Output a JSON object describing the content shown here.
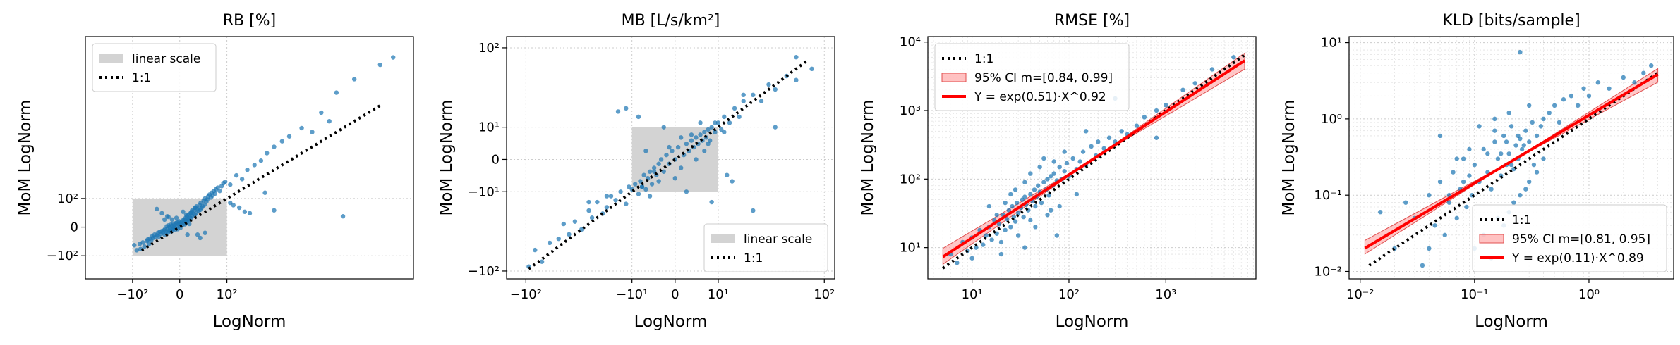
{
  "chart_data": [
    {
      "type": "scatter",
      "title": "RB [%]",
      "xlabel": "LogNorm",
      "ylabel": "MoM LogNorm",
      "scale": "symlog",
      "linthresh": 100,
      "xlim": [
        -300,
        3000
      ],
      "ylim": [
        -250,
        10000
      ],
      "xticks": [
        -100,
        0,
        100
      ],
      "xtick_labels": [
        "−10²",
        "0",
        "10²"
      ],
      "yticks": [
        -100,
        0,
        100
      ],
      "ytick_labels": [
        "−10²",
        "0",
        "10²"
      ],
      "grid": true,
      "shaded_region": {
        "label": "linear scale",
        "x": [
          -100,
          100
        ],
        "y": [
          -100,
          100
        ],
        "color": "#d3d3d3"
      },
      "reference_line": {
        "label": "1:1",
        "x": [
          -75,
          1800
        ],
        "color": "#000000"
      },
      "legend": {
        "position": "top-left",
        "entries": [
          "linear scale",
          "1:1"
        ]
      },
      "points": {
        "color": "#1f77b4",
        "x": [
          -95,
          -88,
          -80,
          -78,
          -72,
          -68,
          -62,
          -60,
          -57,
          -55,
          -52,
          -50,
          -48,
          -45,
          -43,
          -40,
          -38,
          -36,
          -34,
          -32,
          -30,
          -28,
          -26,
          -25,
          -24,
          -22,
          -21,
          -20,
          -19,
          -18,
          -17,
          -16,
          -15,
          -14,
          -13,
          -12,
          -11,
          -10,
          -9,
          -8,
          -7,
          -6,
          -5,
          -4,
          -3,
          -2,
          -1,
          0,
          1,
          2,
          3,
          4,
          5,
          6,
          7,
          8,
          9,
          10,
          11,
          12,
          13,
          14,
          15,
          16,
          17,
          18,
          19,
          20,
          22,
          24,
          25,
          26,
          28,
          30,
          32,
          34,
          35,
          36,
          38,
          40,
          42,
          44,
          45,
          48,
          50,
          52,
          55,
          58,
          60,
          62,
          65,
          68,
          70,
          75,
          80,
          85,
          90,
          95,
          110,
          130,
          150,
          170,
          200,
          230,
          260,
          300,
          350,
          400,
          500,
          700,
          900,
          1200,
          1800,
          2200,
          800,
          300,
          180,
          160,
          140,
          120,
          110,
          600,
          250,
          1000,
          -30,
          -20,
          -10,
          0,
          10,
          20,
          30,
          -40,
          -25,
          -15,
          -5,
          5,
          15,
          25,
          35,
          45,
          -18,
          -8,
          8,
          18,
          28,
          -12,
          12
        ],
        "y": [
          -55,
          -75,
          -50,
          -70,
          -45,
          -60,
          -40,
          -35,
          -50,
          -32,
          -38,
          -25,
          -30,
          -20,
          -28,
          -22,
          -15,
          -26,
          -12,
          -18,
          -10,
          -14,
          -8,
          -20,
          -5,
          -12,
          2,
          -6,
          -15,
          4,
          -9,
          1,
          -3,
          6,
          -11,
          3,
          -4,
          8,
          -2,
          5,
          -7,
          10,
          0,
          12,
          -5,
          7,
          15,
          3,
          -2,
          9,
          14,
          5,
          18,
          11,
          20,
          7,
          25,
          13,
          30,
          16,
          22,
          35,
          18,
          28,
          40,
          24,
          45,
          30,
          38,
          50,
          35,
          60,
          42,
          55,
          48,
          70,
          52,
          80,
          60,
          65,
          90,
          72,
          100,
          85,
          95,
          110,
          120,
          105,
          130,
          115,
          140,
          125,
          150,
          160,
          140,
          170,
          190,
          200,
          180,
          250,
          220,
          300,
          350,
          400,
          500,
          600,
          700,
          800,
          1000,
          1500,
          2500,
          3500,
          5000,
          6000,
          1200,
          50,
          40,
          45,
          60,
          70,
          80,
          900,
          130,
          30,
          40,
          30,
          -5,
          10,
          35,
          50,
          -20,
          55,
          20,
          -10,
          25,
          45,
          8,
          60,
          -30,
          -15,
          28,
          0,
          18,
          40,
          65,
          20,
          -20
        ]
      }
    },
    {
      "type": "scatter",
      "title": "MB [L/s/km²]",
      "xlabel": "LogNorm",
      "ylabel": "MoM LogNorm",
      "scale": "symlog",
      "linthresh": 10,
      "xlim": [
        -140,
        120
      ],
      "ylim": [
        -120,
        130
      ],
      "xticks": [
        -100,
        -10,
        0,
        10,
        100
      ],
      "xtick_labels": [
        "−10²",
        "−10¹",
        "0",
        "10¹",
        "10²"
      ],
      "yticks": [
        -100,
        -10,
        0,
        10,
        100
      ],
      "ytick_labels": [
        "−10²",
        "−10¹",
        "0",
        "10¹",
        "10²"
      ],
      "grid": true,
      "shaded_region": {
        "label": "linear scale",
        "x": [
          -10,
          10
        ],
        "y": [
          -10,
          10
        ],
        "color": "#d3d3d3"
      },
      "reference_line": {
        "label": "1:1",
        "x": [
          -95,
          75
        ],
        "color": "#000000"
      },
      "legend": {
        "position": "bottom-right",
        "entries": [
          "linear scale",
          "1:1"
        ]
      },
      "points": {
        "color": "#1f77b4",
        "x": [
          -95,
          -85,
          -75,
          -65,
          -55,
          -50,
          -45,
          -40,
          -35,
          -30,
          -28,
          -25,
          -22,
          -20,
          -18,
          -16,
          -14,
          -12,
          -11,
          -10,
          -9,
          -8,
          -7.5,
          -7,
          -6.5,
          -6,
          -5.5,
          -5,
          -4.5,
          -4,
          -3.5,
          -3,
          -2.5,
          -2,
          -1.5,
          -1,
          -0.5,
          0,
          0.5,
          1,
          1.5,
          2,
          2.5,
          3,
          3.5,
          4,
          4.5,
          5,
          5.5,
          6,
          6.5,
          7,
          7.5,
          8,
          9,
          10,
          11,
          12,
          14,
          16,
          18,
          20,
          25,
          30,
          35,
          40,
          50,
          60,
          80,
          -12,
          -8,
          -5,
          -2,
          0,
          2,
          5,
          8,
          12,
          20,
          -6,
          -3,
          1,
          4,
          7,
          15,
          25,
          40,
          60,
          -30,
          -20,
          -15,
          -4,
          3,
          6,
          9,
          13,
          -1,
          -7
        ],
        "y": [
          -90,
          -60,
          -80,
          -50,
          -45,
          -30,
          -40,
          -28,
          -35,
          -20,
          -25,
          -15,
          -22,
          -18,
          -12,
          -14,
          -10,
          -16,
          -8,
          -9,
          -7,
          -11,
          -6,
          -8,
          -4,
          -9,
          -5,
          -3,
          -7,
          -2,
          -4,
          -6,
          0,
          -3,
          1,
          -1,
          2,
          0,
          3,
          -2,
          1,
          4,
          2,
          5,
          3,
          6,
          4,
          7,
          5,
          8,
          6,
          9,
          5,
          10,
          8,
          12,
          9,
          15,
          12,
          20,
          15,
          25,
          30,
          25,
          40,
          35,
          50,
          45,
          60,
          20,
          15,
          -12,
          10,
          -5,
          -10,
          12,
          -15,
          8,
          30,
          2,
          -1,
          6,
          0,
          4,
          -6,
          -20,
          10,
          80,
          -15,
          -12,
          18,
          -3,
          7,
          2,
          12,
          -4,
          3,
          -8
        ]
      }
    },
    {
      "type": "scatter",
      "title": "RMSE [%]",
      "xlabel": "LogNorm",
      "ylabel": "MoM LogNorm",
      "scale": "log",
      "xlim": [
        3.5,
        8500
      ],
      "ylim": [
        3.5,
        12000
      ],
      "xticks": [
        10,
        100,
        1000
      ],
      "xtick_labels": [
        "10¹",
        "10²",
        "10³"
      ],
      "yticks": [
        10,
        100,
        1000,
        10000
      ],
      "ytick_labels": [
        "10¹",
        "10²",
        "10³",
        "10⁴"
      ],
      "grid": true,
      "reference_line": {
        "label": "1:1",
        "x": [
          5,
          6500
        ],
        "color": "#000000"
      },
      "fit_line": {
        "label": "Y = exp(0.51)·X^0.92",
        "intercept_log": 0.51,
        "slope": 0.92,
        "x": [
          5,
          6500
        ],
        "color": "#ff0000"
      },
      "ci_band": {
        "label": "95% CI m=[0.84, 0.99]",
        "slope_low": 0.84,
        "slope_high": 0.99,
        "color": "#ff9999"
      },
      "legend": {
        "position": "top-left",
        "entries": [
          "1:1",
          "95% CI m=[0.84, 0.99]",
          "Y = exp(0.51)·X^0.92"
        ]
      },
      "points": {
        "color": "#1f77b4",
        "x": [
          6,
          7,
          8,
          9,
          10,
          10,
          11,
          12,
          13,
          14,
          15,
          16,
          17,
          18,
          19,
          20,
          21,
          22,
          23,
          24,
          25,
          26,
          27,
          28,
          29,
          30,
          32,
          33,
          34,
          35,
          36,
          38,
          40,
          42,
          44,
          45,
          46,
          48,
          50,
          52,
          55,
          58,
          60,
          62,
          65,
          68,
          70,
          75,
          80,
          85,
          90,
          95,
          100,
          110,
          120,
          130,
          140,
          150,
          170,
          190,
          200,
          230,
          260,
          300,
          350,
          400,
          500,
          600,
          800,
          1000,
          1500,
          2000,
          3000,
          5000,
          25,
          30,
          35,
          40,
          50,
          60,
          70,
          80,
          40,
          45,
          55,
          65,
          35,
          28,
          22,
          18,
          120,
          150,
          90,
          75,
          300,
          800,
          20,
          15
        ],
        "y": [
          8,
          6,
          12,
          9,
          14,
          7,
          10,
          18,
          11,
          15,
          20,
          13,
          25,
          16,
          22,
          12,
          30,
          18,
          26,
          35,
          20,
          40,
          28,
          24,
          45,
          32,
          38,
          50,
          28,
          55,
          42,
          35,
          60,
          48,
          70,
          40,
          55,
          80,
          65,
          45,
          90,
          70,
          100,
          58,
          110,
          80,
          120,
          95,
          150,
          100,
          130,
          170,
          110,
          200,
          140,
          180,
          250,
          160,
          300,
          220,
          350,
          280,
          400,
          350,
          500,
          450,
          600,
          800,
          1000,
          1200,
          2000,
          2500,
          4000,
          6000,
          60,
          15,
          90,
          25,
          150,
          30,
          180,
          40,
          120,
          20,
          200,
          35,
          10,
          70,
          45,
          30,
          60,
          500,
          250,
          15,
          1500,
          400,
          8,
          40
        ]
      }
    },
    {
      "type": "scatter",
      "title": "KLD [bits/sample]",
      "xlabel": "LogNorm",
      "ylabel": "MoM LogNorm",
      "scale": "log",
      "xlim": [
        0.008,
        5.5
      ],
      "ylim": [
        0.008,
        12
      ],
      "xticks": [
        0.01,
        0.1,
        1
      ],
      "xtick_labels": [
        "10⁻²",
        "10⁻¹",
        "10⁰"
      ],
      "yticks": [
        0.01,
        0.1,
        1,
        10
      ],
      "ytick_labels": [
        "10⁻²",
        "10⁻¹",
        "10⁰",
        "10¹"
      ],
      "grid": true,
      "reference_line": {
        "label": "1:1",
        "x": [
          0.012,
          4
        ],
        "color": "#000000"
      },
      "fit_line": {
        "label": "Y = exp(0.11)·X^0.89",
        "intercept_log": 0.11,
        "slope": 0.89,
        "x": [
          0.011,
          4
        ],
        "color": "#ff0000"
      },
      "ci_band": {
        "label": "95% CI m=[0.81, 0.95]",
        "slope_low": 0.81,
        "slope_high": 0.95,
        "color": "#ff9999"
      },
      "legend": {
        "position": "bottom-right",
        "entries": [
          "1:1",
          "95% CI m=[0.81, 0.95]",
          "Y = exp(0.11)·X^0.89"
        ]
      },
      "points": {
        "color": "#1f77b4",
        "x": [
          0.015,
          0.02,
          0.025,
          0.03,
          0.035,
          0.04,
          0.045,
          0.05,
          0.055,
          0.06,
          0.065,
          0.07,
          0.075,
          0.08,
          0.085,
          0.09,
          0.095,
          0.1,
          0.11,
          0.12,
          0.13,
          0.14,
          0.15,
          0.16,
          0.17,
          0.18,
          0.19,
          0.2,
          0.21,
          0.22,
          0.23,
          0.24,
          0.25,
          0.26,
          0.28,
          0.3,
          0.32,
          0.35,
          0.38,
          0.4,
          0.45,
          0.5,
          0.55,
          0.6,
          0.7,
          0.8,
          0.9,
          1.0,
          1.2,
          1.5,
          2.0,
          2.5,
          3.0,
          3.5,
          0.1,
          0.12,
          0.14,
          0.16,
          0.18,
          0.2,
          0.22,
          0.25,
          0.28,
          0.3,
          0.15,
          0.17,
          0.19,
          0.21,
          0.24,
          0.27,
          0.05,
          0.07,
          0.09,
          0.35,
          0.4,
          0.3,
          0.25,
          0.2,
          0.15,
          0.11,
          0.08,
          0.06,
          0.04,
          0.13,
          0.33
        ],
        "y": [
          0.06,
          0.02,
          0.08,
          0.05,
          0.012,
          0.1,
          0.04,
          0.15,
          0.03,
          0.08,
          0.2,
          0.05,
          0.12,
          0.3,
          0.07,
          0.18,
          0.1,
          0.25,
          0.15,
          0.4,
          0.2,
          0.12,
          0.5,
          0.3,
          0.18,
          0.6,
          0.25,
          0.35,
          0.8,
          0.22,
          0.45,
          0.3,
          0.55,
          0.4,
          0.7,
          0.5,
          0.9,
          0.6,
          0.8,
          1.0,
          1.2,
          1.5,
          0.9,
          1.8,
          2.0,
          1.5,
          2.5,
          2.0,
          3.0,
          2.5,
          3.5,
          3.0,
          4.0,
          5.0,
          0.02,
          0.03,
          0.015,
          0.05,
          0.04,
          0.06,
          0.08,
          0.1,
          0.12,
          0.15,
          0.7,
          0.35,
          0.5,
          0.25,
          0.6,
          0.45,
          0.6,
          0.3,
          0.4,
          0.2,
          0.3,
          1.5,
          7.5,
          1.2,
          1.0,
          0.8,
          0.15,
          0.1,
          0.02,
          0.35,
          0.25
        ]
      }
    }
  ]
}
